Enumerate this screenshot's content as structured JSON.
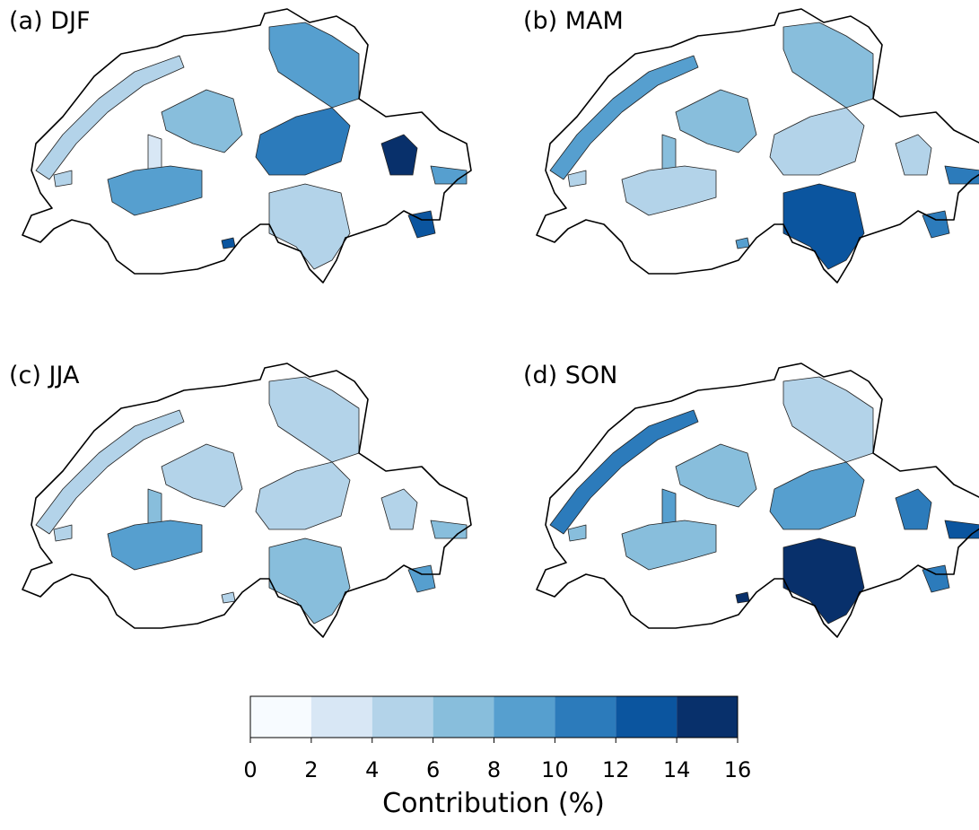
{
  "panels": [
    {
      "title": "(a) DJF"
    },
    {
      "title": "(b) MAM"
    },
    {
      "title": "(c) JJA"
    },
    {
      "title": "(d) SON"
    }
  ],
  "colorbar": {
    "label": "Contribution (%)",
    "ticks": [
      0,
      2,
      4,
      6,
      8,
      10,
      12,
      14,
      16
    ],
    "colors": [
      "#f7fbff",
      "#d8e7f5",
      "#b3d3e9",
      "#88bedc",
      "#569fcf",
      "#2c7bbb",
      "#0b559f",
      "#08306b"
    ]
  }
}
